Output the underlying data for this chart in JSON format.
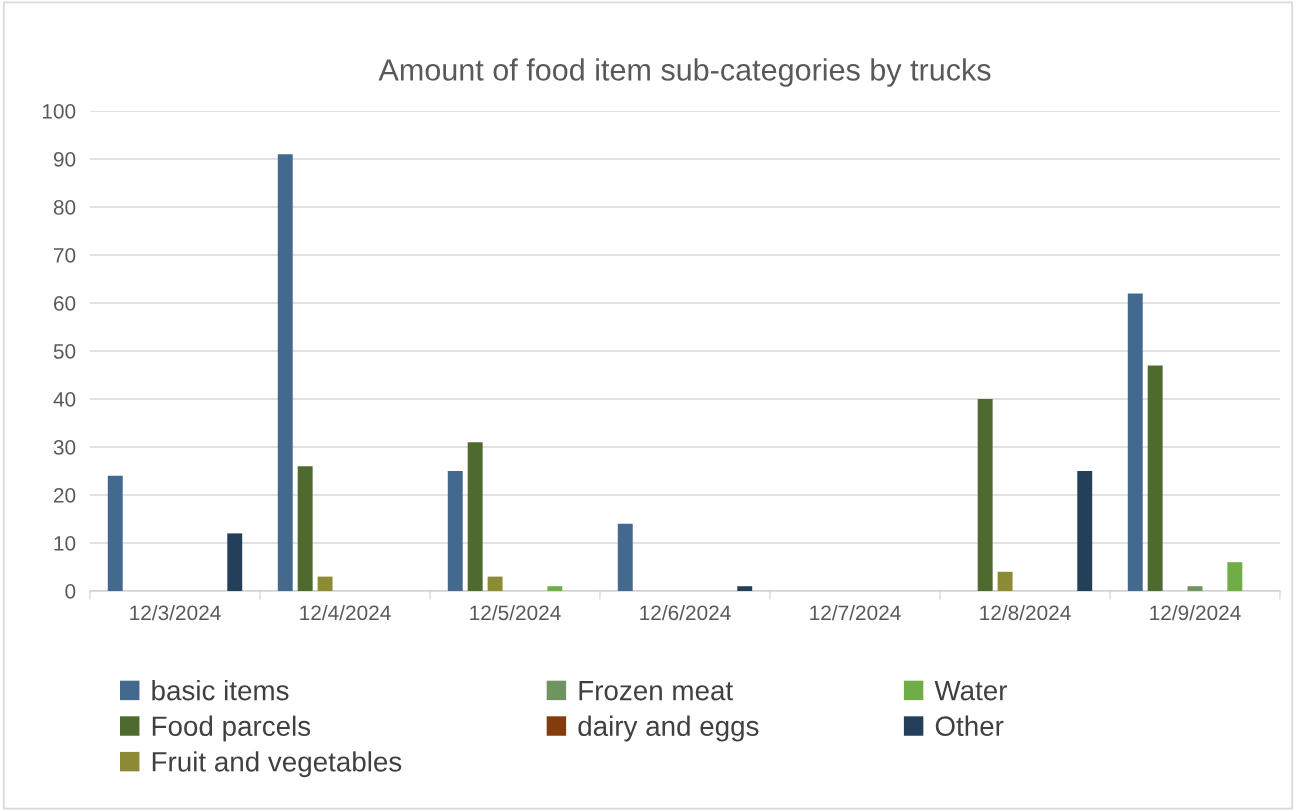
{
  "chart_data": {
    "type": "bar",
    "title": "Amount of food item sub-categories by trucks",
    "categories": [
      "12/3/2024",
      "12/4/2024",
      "12/5/2024",
      "12/6/2024",
      "12/7/2024",
      "12/8/2024",
      "12/9/2024"
    ],
    "series": [
      {
        "name": "basic items",
        "color": "#44698f",
        "values": [
          24,
          91,
          25,
          14,
          0,
          0,
          62
        ]
      },
      {
        "name": "Food parcels",
        "color": "#4e6a2e",
        "values": [
          0,
          26,
          31,
          0,
          0,
          40,
          47
        ]
      },
      {
        "name": "Fruit and vegetables",
        "color": "#8c8a35",
        "values": [
          0,
          3,
          3,
          0,
          0,
          4,
          0
        ]
      },
      {
        "name": "Frozen meat",
        "color": "#6f9460",
        "values": [
          0,
          0,
          0,
          0,
          0,
          0,
          1
        ]
      },
      {
        "name": "dairy and eggs",
        "color": "#843c0c",
        "values": [
          0,
          0,
          0,
          0,
          0,
          0,
          0
        ]
      },
      {
        "name": "Water",
        "color": "#70ad47",
        "values": [
          0,
          0,
          1,
          0,
          0,
          0,
          6
        ]
      },
      {
        "name": "Other",
        "color": "#243f5a",
        "values": [
          12,
          0,
          0,
          1,
          0,
          25,
          0
        ]
      }
    ],
    "ylim": [
      0,
      100
    ],
    "yticks": [
      0,
      10,
      20,
      30,
      40,
      50,
      60,
      70,
      80,
      90,
      100
    ],
    "grid": "y",
    "legend": "bottom"
  }
}
